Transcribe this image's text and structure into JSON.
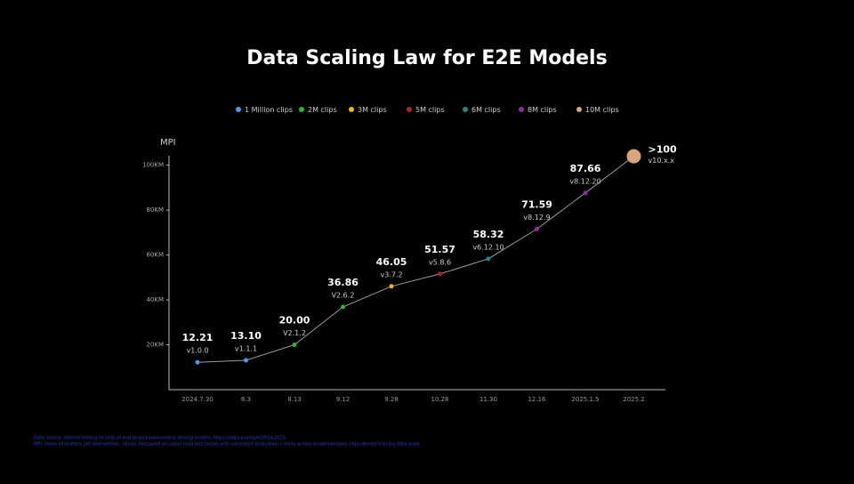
{
  "chart_data": {
    "type": "line",
    "title": "Data Scaling Law for E2E Models",
    "y_label": "MPI",
    "legend": [
      {
        "name": "1 Million clips",
        "color": "#3f9ff0"
      },
      {
        "name": "2M clips",
        "color": "#2db52d"
      },
      {
        "name": "3M clips",
        "color": "#f5b800"
      },
      {
        "name": "5M clips",
        "color": "#b52222"
      },
      {
        "name": "6M clips",
        "color": "#1b8a8a"
      },
      {
        "name": "8M clips",
        "color": "#8e2ea0"
      },
      {
        "name": "10M clips",
        "color": "#d9a679"
      }
    ],
    "categories": [
      "2024.7.30",
      "8.3",
      "8.13",
      "9.12",
      "9.28",
      "10.28",
      "11.30",
      "12.16",
      "2025.1.5",
      "2025.2"
    ],
    "values": [
      12.21,
      13.1,
      20.0,
      36.86,
      46.05,
      51.57,
      58.32,
      71.59,
      87.66,
      104
    ],
    "value_labels": [
      "12.21",
      "13.10",
      "20.00",
      "36.86",
      "46.05",
      "51.57",
      "58.32",
      "71.59",
      "87.66",
      ">100"
    ],
    "versions": [
      "v1.0.0",
      "v1.1.1",
      "V2.1.2",
      "V2.6.2",
      "v3.7.2",
      "v5.8.6",
      "v6.12.10",
      "v8.12.9",
      "v8.12.20",
      "v10.x.x"
    ],
    "colors": [
      "#3f9ff0",
      "#3f9ff0",
      "#2db52d",
      "#2db52d",
      "#f5b800",
      "#b52222",
      "#1b8a8a",
      "#8e2ea0",
      "#8e2ea0",
      "#d9a679"
    ],
    "line_color": "#9a9a9a",
    "ylim": [
      0,
      104
    ],
    "yticks": [
      {
        "value": 20,
        "label": "20KM"
      },
      {
        "value": 40,
        "label": "40KM"
      },
      {
        "value": 60,
        "label": "60KM"
      },
      {
        "value": 80,
        "label": "80KM"
      },
      {
        "value": 100,
        "label": "100KM"
      }
    ],
    "footnotes": [
      "Data source: internal testing records of end-to-end autonomous driving models, https://data.example/2024-2025",
      "MPI: mean kilometers per intervention. Values measured on urban road test routes with consistent evaluation criteria across model versions; clips denote training data scale."
    ]
  }
}
